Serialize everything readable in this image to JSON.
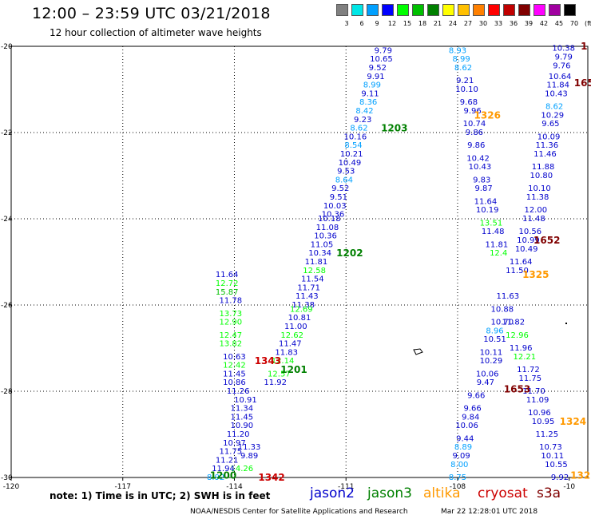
{
  "header": {
    "title": "12:00 – 23:59 UTC 03/21/2018",
    "subtitle": "12 hour collection of altimeter wave heights"
  },
  "color_scale": {
    "labels": [
      "3",
      "6",
      "9",
      "12",
      "15",
      "18",
      "21",
      "24",
      "27",
      "30",
      "33",
      "36",
      "39",
      "42",
      "45",
      "70",
      "(ft)"
    ],
    "colors": [
      "#808080",
      "#00e6e6",
      "#00a0ff",
      "#0000ff",
      "#00ff00",
      "#00c000",
      "#008000",
      "#ffff00",
      "#ffc000",
      "#ff8000",
      "#ff0000",
      "#c00000",
      "#800000",
      "#ff00ff",
      "#a000a0",
      "#000000"
    ]
  },
  "note": "note:  1) Time is in UTC;  2) SWH is in feet",
  "satellites": [
    {
      "name": "jason2",
      "color": "#0000cc"
    },
    {
      "name": "jason3",
      "color": "#008000"
    },
    {
      "name": "altika",
      "color": "#ff9900"
    },
    {
      "name": "cryosat",
      "color": "#cc0000"
    },
    {
      "name": "s3a",
      "color": "#800000"
    }
  ],
  "footer": {
    "left": "NOAA/NESDIS Center for Satellite Applications and Research",
    "right": "Mar 22 12:28:01 UTC 2018"
  },
  "chart_data": {
    "type": "scatter",
    "x_ticks": [
      "-120",
      "-117",
      "-114",
      "-111",
      "-108",
      "-10"
    ],
    "y_ticks": [
      "-20",
      "-22",
      "-24",
      "-26",
      "-28",
      "-30"
    ],
    "xlim": [
      -120,
      -104.5
    ],
    "ylim": [
      -30,
      -20
    ],
    "grid": true,
    "track_labels": [
      {
        "text": "1203",
        "x": -109.7,
        "y": -21.9,
        "color": "#008000"
      },
      {
        "text": "1202",
        "x": -110.9,
        "y": -24.8,
        "color": "#008000"
      },
      {
        "text": "1201",
        "x": -112.4,
        "y": -27.5,
        "color": "#008000"
      },
      {
        "text": "1200",
        "x": -114.3,
        "y": -29.95,
        "color": "#008000"
      },
      {
        "text": "1343",
        "x": -113.1,
        "y": -27.3,
        "color": "#cc0000"
      },
      {
        "text": "1342",
        "x": -113.0,
        "y": -30.0,
        "color": "#cc0000"
      },
      {
        "text": "1326",
        "x": -107.2,
        "y": -21.6,
        "color": "#ff9900"
      },
      {
        "text": "1325",
        "x": -105.9,
        "y": -25.3,
        "color": "#ff9900"
      },
      {
        "text": "1324",
        "x": -104.9,
        "y": -28.7,
        "color": "#ff9900"
      },
      {
        "text": "132",
        "x": -104.7,
        "y": -29.95,
        "color": "#ff9900"
      },
      {
        "text": "1652",
        "x": -105.6,
        "y": -24.5,
        "color": "#800000"
      },
      {
        "text": "1653",
        "x": -106.4,
        "y": -27.95,
        "color": "#800000"
      },
      {
        "text": "165",
        "x": -104.6,
        "y": -20.85,
        "color": "#800000"
      },
      {
        "text": "1",
        "x": -104.6,
        "y": -20.0,
        "color": "#800000"
      }
    ],
    "points": [
      {
        "t": "9.79",
        "x": -110.0,
        "y": -20.1,
        "c": "#0000cc"
      },
      {
        "t": "10.65",
        "x": -110.05,
        "y": -20.3,
        "c": "#0000cc"
      },
      {
        "t": "9.52",
        "x": -110.15,
        "y": -20.5,
        "c": "#0000cc"
      },
      {
        "t": "9.91",
        "x": -110.2,
        "y": -20.7,
        "c": "#0000cc"
      },
      {
        "t": "8.99",
        "x": -110.3,
        "y": -20.9,
        "c": "#00a0ff"
      },
      {
        "t": "9.11",
        "x": -110.35,
        "y": -21.1,
        "c": "#0000cc"
      },
      {
        "t": "8.36",
        "x": -110.4,
        "y": -21.3,
        "c": "#00a0ff"
      },
      {
        "t": "8.42",
        "x": -110.5,
        "y": -21.5,
        "c": "#00a0ff"
      },
      {
        "t": "9.23",
        "x": -110.55,
        "y": -21.7,
        "c": "#0000cc"
      },
      {
        "t": "8.62",
        "x": -110.65,
        "y": -21.9,
        "c": "#00a0ff"
      },
      {
        "t": "10.16",
        "x": -110.75,
        "y": -22.1,
        "c": "#0000cc"
      },
      {
        "t": "8.54",
        "x": -110.8,
        "y": -22.3,
        "c": "#00a0ff"
      },
      {
        "t": "10.21",
        "x": -110.85,
        "y": -22.5,
        "c": "#0000cc"
      },
      {
        "t": "10.49",
        "x": -110.9,
        "y": -22.7,
        "c": "#0000cc"
      },
      {
        "t": "9.53",
        "x": -111.0,
        "y": -22.9,
        "c": "#0000cc"
      },
      {
        "t": "8.64",
        "x": -111.05,
        "y": -23.1,
        "c": "#00a0ff"
      },
      {
        "t": "9.52",
        "x": -111.15,
        "y": -23.3,
        "c": "#0000cc"
      },
      {
        "t": "9.51",
        "x": -111.2,
        "y": -23.5,
        "c": "#0000cc"
      },
      {
        "t": "10.03",
        "x": -111.3,
        "y": -23.7,
        "c": "#0000cc"
      },
      {
        "t": "10.36",
        "x": -111.35,
        "y": -23.9,
        "c": "#0000cc"
      },
      {
        "t": "10.18",
        "x": -111.45,
        "y": -24.0,
        "c": "#0000cc"
      },
      {
        "t": "11.08",
        "x": -111.5,
        "y": -24.2,
        "c": "#0000cc"
      },
      {
        "t": "10.36",
        "x": -111.55,
        "y": -24.4,
        "c": "#0000cc"
      },
      {
        "t": "11.05",
        "x": -111.65,
        "y": -24.6,
        "c": "#0000cc"
      },
      {
        "t": "10.34",
        "x": -111.7,
        "y": -24.8,
        "c": "#0000cc"
      },
      {
        "t": "11.81",
        "x": -111.8,
        "y": -25.0,
        "c": "#0000cc"
      },
      {
        "t": "12.58",
        "x": -111.85,
        "y": -25.2,
        "c": "#00ff00"
      },
      {
        "t": "11.54",
        "x": -111.9,
        "y": -25.4,
        "c": "#0000cc"
      },
      {
        "t": "11.71",
        "x": -112.0,
        "y": -25.6,
        "c": "#0000cc"
      },
      {
        "t": "11.43",
        "x": -112.05,
        "y": -25.8,
        "c": "#0000cc"
      },
      {
        "t": "11.38",
        "x": -112.15,
        "y": -26.0,
        "c": "#0000cc"
      },
      {
        "t": "12.69",
        "x": -112.2,
        "y": -26.1,
        "c": "#00ff00"
      },
      {
        "t": "10.81",
        "x": -112.25,
        "y": -26.3,
        "c": "#0000cc"
      },
      {
        "t": "11.00",
        "x": -112.35,
        "y": -26.5,
        "c": "#0000cc"
      },
      {
        "t": "12.62",
        "x": -112.45,
        "y": -26.7,
        "c": "#00ff00"
      },
      {
        "t": "11.47",
        "x": -112.5,
        "y": -26.9,
        "c": "#0000cc"
      },
      {
        "t": "11.83",
        "x": -112.6,
        "y": -27.1,
        "c": "#0000cc"
      },
      {
        "t": "12.14",
        "x": -112.7,
        "y": -27.3,
        "c": "#00ff00"
      },
      {
        "t": "12.57",
        "x": -112.8,
        "y": -27.6,
        "c": "#00ff00"
      },
      {
        "t": "11.92",
        "x": -112.9,
        "y": -27.8,
        "c": "#0000cc"
      },
      {
        "t": "11.64",
        "x": -114.2,
        "y": -25.3,
        "c": "#0000cc"
      },
      {
        "t": "12.72",
        "x": -114.2,
        "y": -25.5,
        "c": "#00ff00"
      },
      {
        "t": "15.87",
        "x": -114.2,
        "y": -25.7,
        "c": "#00c000"
      },
      {
        "t": "11.78",
        "x": -114.1,
        "y": -25.9,
        "c": "#0000cc"
      },
      {
        "t": "13.73",
        "x": -114.1,
        "y": -26.2,
        "c": "#00ff00"
      },
      {
        "t": "12.90",
        "x": -114.1,
        "y": -26.4,
        "c": "#00ff00"
      },
      {
        "t": "12.47",
        "x": -114.1,
        "y": -26.7,
        "c": "#00ff00"
      },
      {
        "t": "13.82",
        "x": -114.1,
        "y": -26.9,
        "c": "#00ff00"
      },
      {
        "t": "10.63",
        "x": -114.0,
        "y": -27.2,
        "c": "#0000cc"
      },
      {
        "t": "12.42",
        "x": -114.0,
        "y": -27.4,
        "c": "#00ff00"
      },
      {
        "t": "11.45",
        "x": -114.0,
        "y": -27.6,
        "c": "#0000cc"
      },
      {
        "t": "10.86",
        "x": -114.0,
        "y": -27.8,
        "c": "#0000cc"
      },
      {
        "t": "11.26",
        "x": -113.9,
        "y": -28.0,
        "c": "#0000cc"
      },
      {
        "t": "10.91",
        "x": -113.7,
        "y": -28.2,
        "c": "#0000cc"
      },
      {
        "t": "11.34",
        "x": -113.8,
        "y": -28.4,
        "c": "#0000cc"
      },
      {
        "t": "11.45",
        "x": -113.8,
        "y": -28.6,
        "c": "#0000cc"
      },
      {
        "t": "10.90",
        "x": -113.8,
        "y": -28.8,
        "c": "#0000cc"
      },
      {
        "t": "11.20",
        "x": -113.9,
        "y": -29.0,
        "c": "#0000cc"
      },
      {
        "t": "10.97",
        "x": -114.0,
        "y": -29.2,
        "c": "#0000cc"
      },
      {
        "t": "11.33",
        "x": -113.6,
        "y": -29.3,
        "c": "#0000cc"
      },
      {
        "t": "11.75",
        "x": -114.1,
        "y": -29.4,
        "c": "#0000cc"
      },
      {
        "t": "9.89",
        "x": -113.6,
        "y": -29.5,
        "c": "#0000cc"
      },
      {
        "t": "11.21",
        "x": -114.2,
        "y": -29.6,
        "c": "#0000cc"
      },
      {
        "t": "14.26",
        "x": -113.8,
        "y": -29.8,
        "c": "#00ff00"
      },
      {
        "t": "11.94",
        "x": -114.3,
        "y": -29.8,
        "c": "#0000cc"
      },
      {
        "t": "8.92",
        "x": -114.5,
        "y": -30.0,
        "c": "#00a0ff"
      },
      {
        "t": "8.93",
        "x": -108.0,
        "y": -20.1,
        "c": "#00a0ff"
      },
      {
        "t": "8.99",
        "x": -107.9,
        "y": -20.3,
        "c": "#00a0ff"
      },
      {
        "t": "8.62",
        "x": -107.85,
        "y": -20.5,
        "c": "#00a0ff"
      },
      {
        "t": "9.21",
        "x": -107.8,
        "y": -20.8,
        "c": "#0000cc"
      },
      {
        "t": "10.10",
        "x": -107.75,
        "y": -21.0,
        "c": "#0000cc"
      },
      {
        "t": "9.68",
        "x": -107.7,
        "y": -21.3,
        "c": "#0000cc"
      },
      {
        "t": "9.96",
        "x": -107.6,
        "y": -21.5,
        "c": "#0000cc"
      },
      {
        "t": "10.74",
        "x": -107.55,
        "y": -21.8,
        "c": "#0000cc"
      },
      {
        "t": "9.86",
        "x": -107.55,
        "y": -22.0,
        "c": "#0000cc"
      },
      {
        "t": "9.86",
        "x": -107.5,
        "y": -22.3,
        "c": "#0000cc"
      },
      {
        "t": "10.42",
        "x": -107.45,
        "y": -22.6,
        "c": "#0000cc"
      },
      {
        "t": "10.43",
        "x": -107.4,
        "y": -22.8,
        "c": "#0000cc"
      },
      {
        "t": "9.83",
        "x": -107.35,
        "y": -23.1,
        "c": "#0000cc"
      },
      {
        "t": "9.87",
        "x": -107.3,
        "y": -23.3,
        "c": "#0000cc"
      },
      {
        "t": "11.64",
        "x": -107.25,
        "y": -23.6,
        "c": "#0000cc"
      },
      {
        "t": "10.19",
        "x": -107.2,
        "y": -23.8,
        "c": "#0000cc"
      },
      {
        "t": "13.51",
        "x": -107.1,
        "y": -24.1,
        "c": "#00ff00"
      },
      {
        "t": "11.48",
        "x": -107.05,
        "y": -24.3,
        "c": "#0000cc"
      },
      {
        "t": "11.81",
        "x": -106.95,
        "y": -24.6,
        "c": "#0000cc"
      },
      {
        "t": "12.4",
        "x": -106.9,
        "y": -24.8,
        "c": "#00ff00"
      },
      {
        "t": "11.63",
        "x": -106.65,
        "y": -25.8,
        "c": "#0000cc"
      },
      {
        "t": "10.88",
        "x": -106.8,
        "y": -26.1,
        "c": "#0000cc"
      },
      {
        "t": "10.70",
        "x": -106.8,
        "y": -26.4,
        "c": "#0000cc"
      },
      {
        "t": "8.96",
        "x": -107.0,
        "y": -26.6,
        "c": "#00a0ff"
      },
      {
        "t": "10.51",
        "x": -107.0,
        "y": -26.8,
        "c": "#0000cc"
      },
      {
        "t": "10.11",
        "x": -107.1,
        "y": -27.1,
        "c": "#0000cc"
      },
      {
        "t": "10.29",
        "x": -107.1,
        "y": -27.3,
        "c": "#0000cc"
      },
      {
        "t": "10.06",
        "x": -107.2,
        "y": -27.6,
        "c": "#0000cc"
      },
      {
        "t": "9.47",
        "x": -107.25,
        "y": -27.8,
        "c": "#0000cc"
      },
      {
        "t": "9.66",
        "x": -107.5,
        "y": -28.1,
        "c": "#0000cc"
      },
      {
        "t": "9.66",
        "x": -107.6,
        "y": -28.4,
        "c": "#0000cc"
      },
      {
        "t": "9.84",
        "x": -107.65,
        "y": -28.6,
        "c": "#0000cc"
      },
      {
        "t": "10.06",
        "x": -107.75,
        "y": -28.8,
        "c": "#0000cc"
      },
      {
        "t": "9.44",
        "x": -107.8,
        "y": -29.1,
        "c": "#0000cc"
      },
      {
        "t": "8.89",
        "x": -107.85,
        "y": -29.3,
        "c": "#00a0ff"
      },
      {
        "t": "9.09",
        "x": -107.9,
        "y": -29.5,
        "c": "#0000cc"
      },
      {
        "t": "8.00",
        "x": -107.95,
        "y": -29.7,
        "c": "#00a0ff"
      },
      {
        "t": "8.75",
        "x": -108.0,
        "y": -30.0,
        "c": "#00a0ff"
      },
      {
        "t": "10.38",
        "x": -105.15,
        "y": -20.05,
        "c": "#0000cc"
      },
      {
        "t": "9.79",
        "x": -105.15,
        "y": -20.25,
        "c": "#0000cc"
      },
      {
        "t": "9.76",
        "x": -105.2,
        "y": -20.45,
        "c": "#0000cc"
      },
      {
        "t": "10.64",
        "x": -105.25,
        "y": -20.7,
        "c": "#0000cc"
      },
      {
        "t": "11.84",
        "x": -105.3,
        "y": -20.9,
        "c": "#0000cc"
      },
      {
        "t": "10.43",
        "x": -105.35,
        "y": -21.1,
        "c": "#0000cc"
      },
      {
        "t": "8.62",
        "x": -105.4,
        "y": -21.4,
        "c": "#00a0ff"
      },
      {
        "t": "10.29",
        "x": -105.45,
        "y": -21.6,
        "c": "#0000cc"
      },
      {
        "t": "9.65",
        "x": -105.5,
        "y": -21.8,
        "c": "#0000cc"
      },
      {
        "t": "10.09",
        "x": -105.55,
        "y": -22.1,
        "c": "#0000cc"
      },
      {
        "t": "11.36",
        "x": -105.6,
        "y": -22.3,
        "c": "#0000cc"
      },
      {
        "t": "11.46",
        "x": -105.65,
        "y": -22.5,
        "c": "#0000cc"
      },
      {
        "t": "11.88",
        "x": -105.7,
        "y": -22.8,
        "c": "#0000cc"
      },
      {
        "t": "10.80",
        "x": -105.75,
        "y": -23.0,
        "c": "#0000cc"
      },
      {
        "t": "10.10",
        "x": -105.8,
        "y": -23.3,
        "c": "#0000cc"
      },
      {
        "t": "11.38",
        "x": -105.85,
        "y": -23.5,
        "c": "#0000cc"
      },
      {
        "t": "12.00",
        "x": -105.9,
        "y": -23.8,
        "c": "#0000cc"
      },
      {
        "t": "11.48",
        "x": -105.95,
        "y": -24.0,
        "c": "#0000cc"
      },
      {
        "t": "10.56",
        "x": -106.05,
        "y": -24.3,
        "c": "#0000cc"
      },
      {
        "t": "10.99",
        "x": -106.1,
        "y": -24.5,
        "c": "#0000cc"
      },
      {
        "t": "10.49",
        "x": -106.15,
        "y": -24.7,
        "c": "#0000cc"
      },
      {
        "t": "11.64",
        "x": -106.3,
        "y": -25.0,
        "c": "#0000cc"
      },
      {
        "t": "11.50",
        "x": -106.4,
        "y": -25.2,
        "c": "#0000cc"
      },
      {
        "t": "11.82",
        "x": -106.5,
        "y": -26.4,
        "c": "#0000cc"
      },
      {
        "t": "12.96",
        "x": -106.4,
        "y": -26.7,
        "c": "#00ff00"
      },
      {
        "t": "11.96",
        "x": -106.3,
        "y": -27.0,
        "c": "#0000cc"
      },
      {
        "t": "12.21",
        "x": -106.2,
        "y": -27.2,
        "c": "#00ff00"
      },
      {
        "t": "11.72",
        "x": -106.1,
        "y": -27.5,
        "c": "#0000cc"
      },
      {
        "t": "11.75",
        "x": -106.05,
        "y": -27.7,
        "c": "#0000cc"
      },
      {
        "t": "11.70",
        "x": -105.95,
        "y": -28.0,
        "c": "#0000cc"
      },
      {
        "t": "11.09",
        "x": -105.85,
        "y": -28.2,
        "c": "#0000cc"
      },
      {
        "t": "10.96",
        "x": -105.8,
        "y": -28.5,
        "c": "#0000cc"
      },
      {
        "t": "10.95",
        "x": -105.7,
        "y": -28.7,
        "c": "#0000cc"
      },
      {
        "t": "11.25",
        "x": -105.6,
        "y": -29.0,
        "c": "#0000cc"
      },
      {
        "t": "10.73",
        "x": -105.5,
        "y": -29.3,
        "c": "#0000cc"
      },
      {
        "t": "10.11",
        "x": -105.45,
        "y": -29.5,
        "c": "#0000cc"
      },
      {
        "t": "10.55",
        "x": -105.35,
        "y": -29.7,
        "c": "#0000cc"
      },
      {
        "t": "9.92",
        "x": -105.25,
        "y": -30.0,
        "c": "#0000cc"
      }
    ]
  }
}
